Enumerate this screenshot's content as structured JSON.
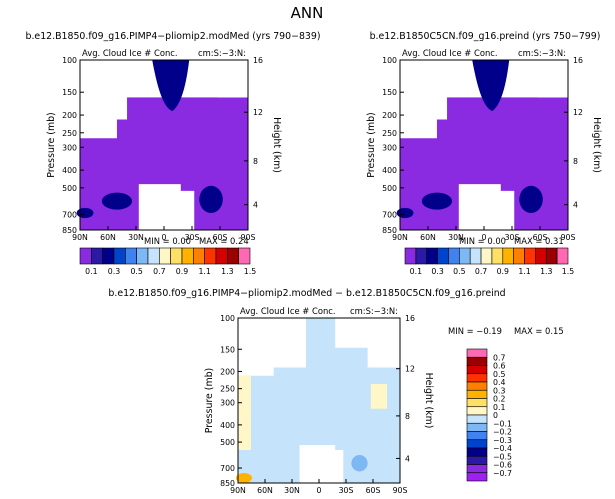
{
  "page_title": "ANN",
  "chart_data": [
    {
      "type": "contour",
      "title": "b.e12.B1850.f09_g16.PIMP4−pliomip2.modMed (yrs 790−839)",
      "subtitle": "Avg. Cloud Ice # Conc.",
      "units": "cm:S:−3:N:",
      "xlabel": "",
      "ylabel": "Pressure (mb)",
      "ylabel_right": "Height (km)",
      "x_ticks": [
        "90N",
        "60N",
        "30N",
        "0",
        "30S",
        "60S",
        "90S"
      ],
      "y_ticks": [
        "100",
        "150",
        "200",
        "250",
        "300",
        "400",
        "500",
        "700",
        "850"
      ],
      "y_ticks_right": [
        "16",
        "12",
        "8",
        "4"
      ],
      "min_label": "MIN =    0.00",
      "max_label": "MAX =    0.24",
      "colorbar_labels": [
        "0.1",
        "0.3",
        "0.5",
        "0.7",
        "0.9",
        "1.1",
        "1.3",
        "1.5"
      ],
      "colorbar_colors": [
        "#8a2be2",
        "#2a1aa6",
        "#00008b",
        "#0044cc",
        "#3f82f0",
        "#7db8f5",
        "#c5e3fa",
        "#fff7c7",
        "#ffe066",
        "#ffb300",
        "#ff7f00",
        "#ff3300",
        "#d40000",
        "#9b0000",
        "#ff69b4"
      ]
    },
    {
      "type": "contour",
      "title": "b.e12.B1850C5CN.f09_g16.preind (yrs 750−799)",
      "subtitle": "Avg. Cloud Ice # Conc.",
      "units": "cm:S:−3:N:",
      "xlabel": "",
      "ylabel": "Pressure (mb)",
      "ylabel_right": "Height (km)",
      "x_ticks": [
        "90N",
        "60N",
        "30N",
        "0",
        "30S",
        "60S",
        "90S"
      ],
      "y_ticks": [
        "100",
        "150",
        "200",
        "250",
        "300",
        "400",
        "500",
        "700",
        "850"
      ],
      "y_ticks_right": [
        "16",
        "12",
        "8",
        "4"
      ],
      "min_label": "MIN =    0.00",
      "max_label": "MAX =    0.31",
      "colorbar_labels": [
        "0.1",
        "0.3",
        "0.5",
        "0.7",
        "0.9",
        "1.1",
        "1.3",
        "1.5"
      ],
      "colorbar_colors": [
        "#8a2be2",
        "#2a1aa6",
        "#00008b",
        "#0044cc",
        "#3f82f0",
        "#7db8f5",
        "#c5e3fa",
        "#fff7c7",
        "#ffe066",
        "#ffb300",
        "#ff7f00",
        "#ff3300",
        "#d40000",
        "#9b0000",
        "#ff69b4"
      ]
    },
    {
      "type": "contour",
      "title": "b.e12.B1850.f09_g16.PIMP4−pliomip2.modMed − b.e12.B1850C5CN.f09_g16.preind",
      "subtitle": "Avg. Cloud Ice # Conc.",
      "units": "cm:S:−3:N:",
      "xlabel": "",
      "ylabel": "Pressure (mb)",
      "ylabel_right": "Height (km)",
      "x_ticks": [
        "90N",
        "60N",
        "30N",
        "0",
        "30S",
        "60S",
        "90S"
      ],
      "y_ticks": [
        "100",
        "150",
        "200",
        "250",
        "300",
        "400",
        "500",
        "700",
        "850"
      ],
      "y_ticks_right": [
        "16",
        "12",
        "8",
        "4"
      ],
      "min_label": "MIN =   −0.19",
      "max_label": "MAX =    0.15",
      "colorbar_labels": [
        "0.7",
        "0.6",
        "0.5",
        "0.4",
        "0.3",
        "0.2",
        "0.1",
        "0",
        "−0.1",
        "−0.2",
        "−0.3",
        "−0.4",
        "−0.5",
        "−0.6",
        "−0.7"
      ],
      "colorbar_colors": [
        "#ff69b4",
        "#9b0000",
        "#d40000",
        "#ff3300",
        "#ff7f00",
        "#ffb300",
        "#ffe066",
        "#fff7c7",
        "#c5e3fa",
        "#7db8f5",
        "#3f82f0",
        "#0044cc",
        "#00008b",
        "#2a1aa6",
        "#8a2be2",
        "#a020f0"
      ]
    }
  ]
}
